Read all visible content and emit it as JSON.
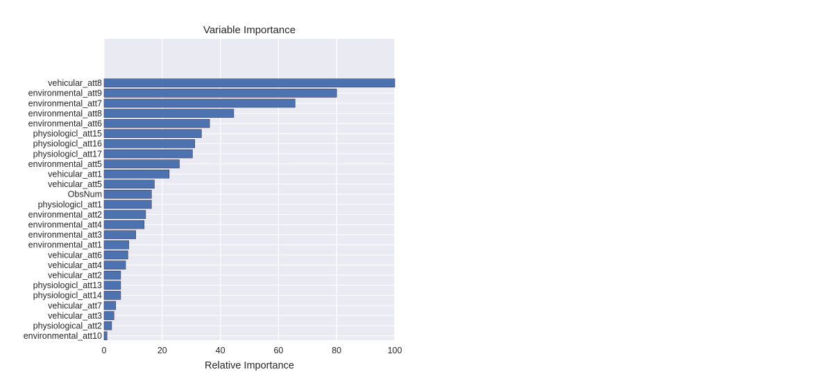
{
  "chart_data": {
    "type": "bar",
    "orientation": "horizontal",
    "title": "Variable Importance",
    "xlabel": "Relative Importance",
    "ylabel": "",
    "xlim": [
      0,
      100
    ],
    "xticks": [
      0,
      20,
      40,
      60,
      80,
      100
    ],
    "grid": true,
    "legend": "none",
    "colors": {
      "bar": "#4c72b0",
      "bar_edge": "#3a3a5a",
      "background": "#eaeaf2",
      "grid": "#ffffff"
    },
    "categories": [
      "vehicular_att8",
      "environmental_att9",
      "environmental_att7",
      "environmental_att8",
      "environmental_att6",
      "physiologicl_att15",
      "physiologicl_att16",
      "physiologicl_att17",
      "environmental_att5",
      "vehicular_att1",
      "vehicular_att5",
      "ObsNum",
      "physiologicl_att1",
      "environmental_att2",
      "environmental_att4",
      "environmental_att3",
      "environmental_att1",
      "vehicular_att6",
      "vehicular_att4",
      "vehicular_att2",
      "physiologicl_att13",
      "physiologicl_att14",
      "vehicular_att7",
      "vehicular_att3",
      "physiological_att2",
      "environmental_att10"
    ],
    "values": [
      100,
      80,
      65.7,
      44.6,
      36.3,
      33.5,
      31.2,
      30.4,
      25.9,
      22.4,
      17.3,
      16.3,
      16.3,
      14.3,
      13.8,
      10.9,
      8.5,
      8.2,
      7.4,
      5.7,
      5.7,
      5.7,
      4.0,
      3.4,
      2.6,
      1.0
    ]
  }
}
